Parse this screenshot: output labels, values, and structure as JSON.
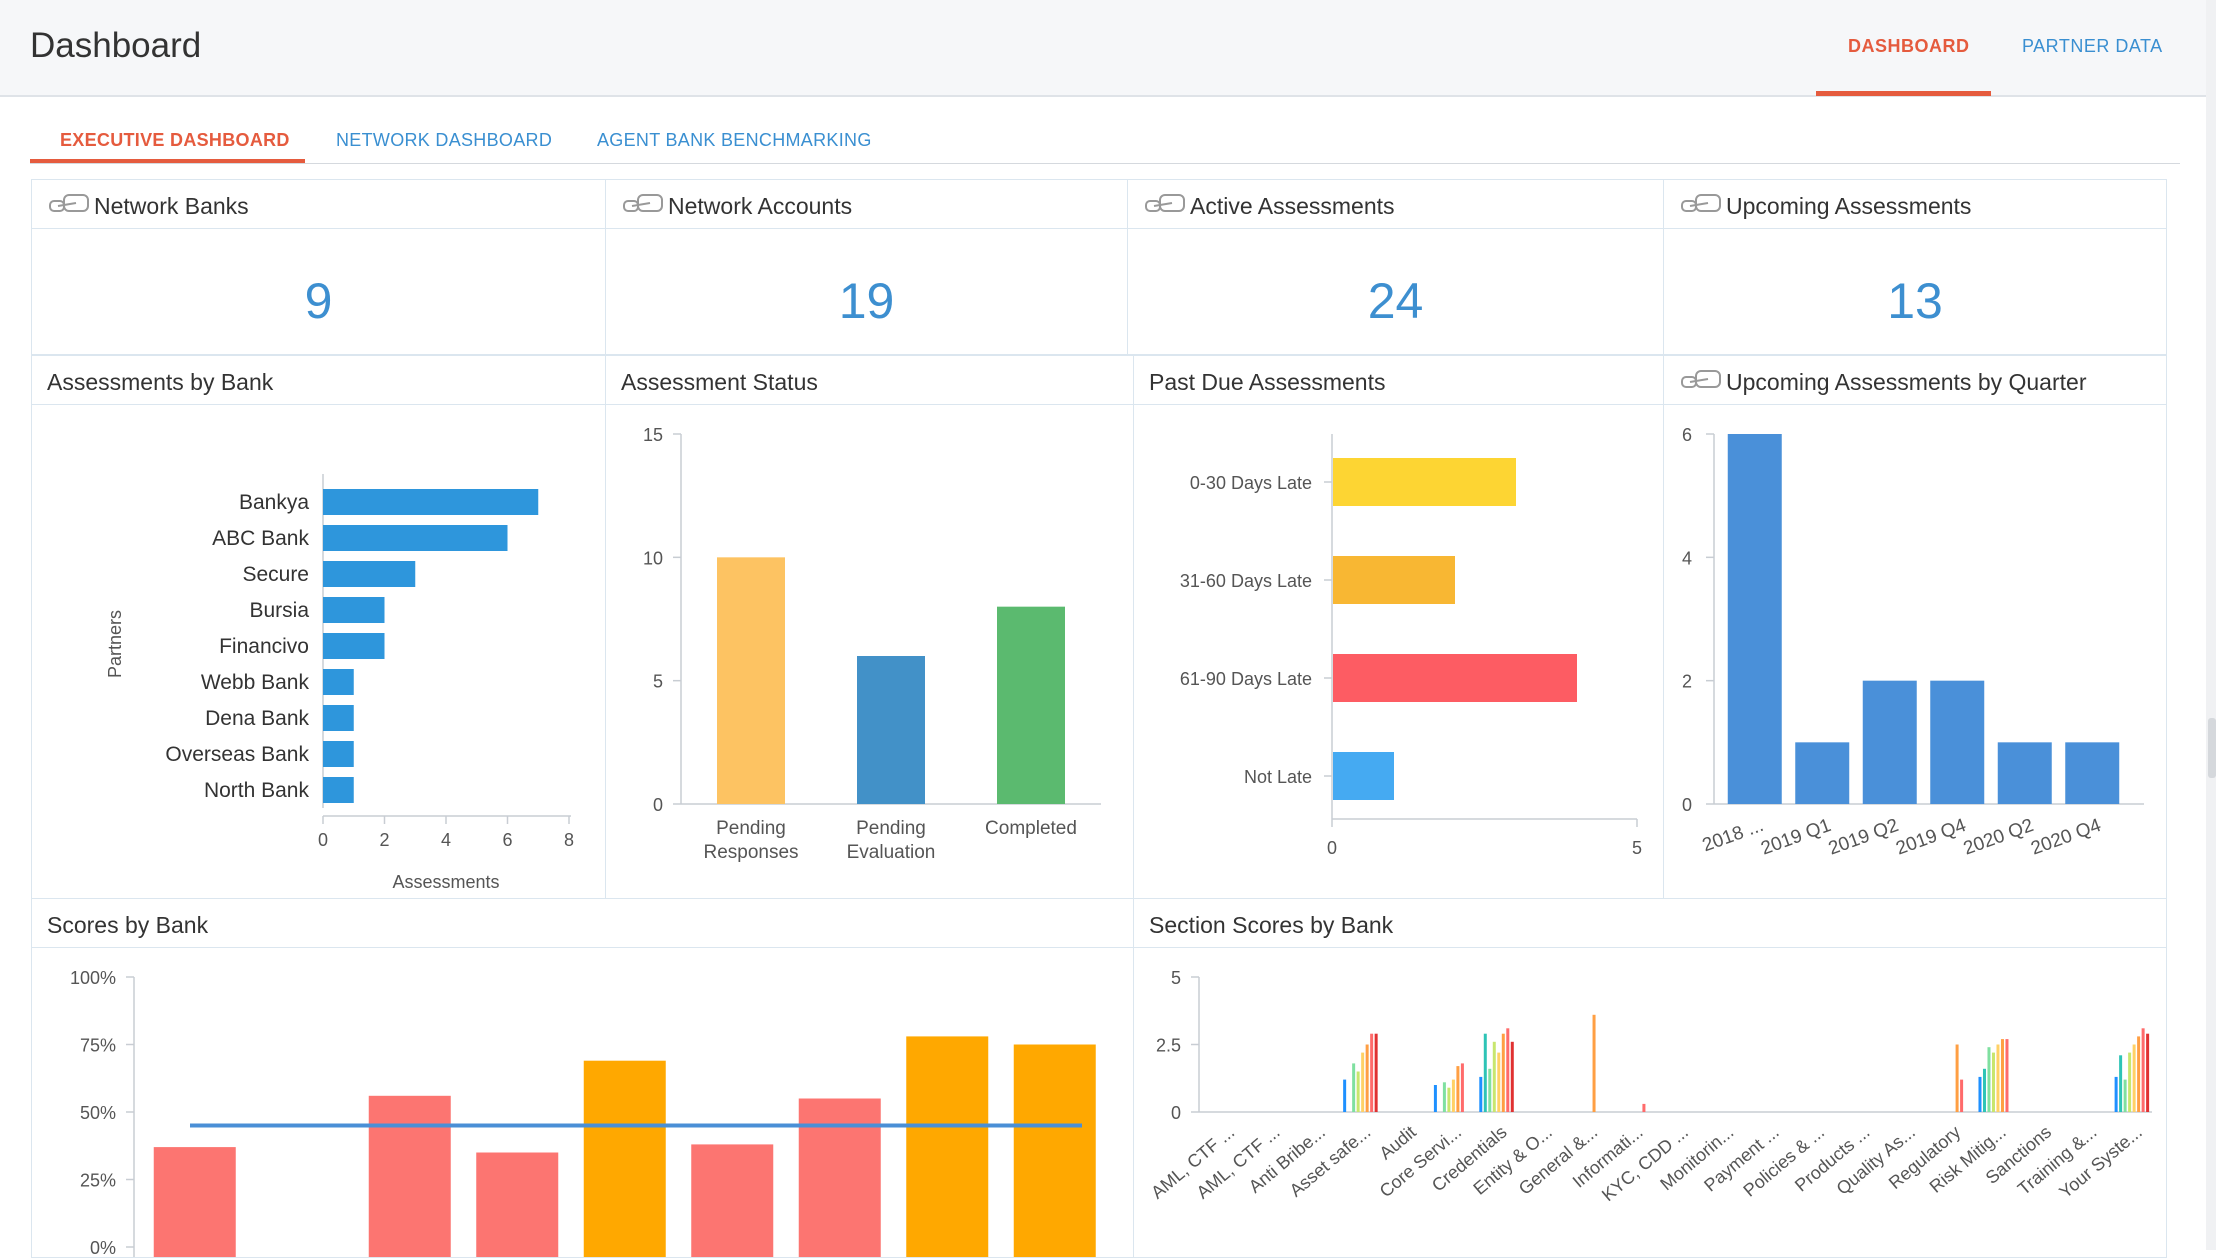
{
  "header": {
    "title": "Dashboard",
    "nav": [
      {
        "label": "DASHBOARD",
        "active": true
      },
      {
        "label": "PARTNER DATA",
        "active": false
      }
    ]
  },
  "subtabs": [
    {
      "label": "EXECUTIVE DASHBOARD",
      "active": true
    },
    {
      "label": "NETWORK DASHBOARD",
      "active": false
    },
    {
      "label": "AGENT BANK BENCHMARKING",
      "active": false
    }
  ],
  "kpis": [
    {
      "title": "Network Banks",
      "value": "9"
    },
    {
      "title": "Network Accounts",
      "value": "19"
    },
    {
      "title": "Active Assessments",
      "value": "24"
    },
    {
      "title": "Upcoming Assessments",
      "value": "13"
    }
  ],
  "panels": {
    "assessments_by_bank": "Assessments by Bank",
    "assessment_status": "Assessment Status",
    "past_due": "Past Due Assessments",
    "upcoming_by_quarter": "Upcoming Assessments by Quarter",
    "scores_by_bank": "Scores by Bank",
    "section_scores": "Section Scores by Bank"
  },
  "colors": {
    "accent": "#e55b3e",
    "link": "#3a8fd1",
    "kpi": "#3d8fd0"
  },
  "chart_data": [
    {
      "id": "assessments_by_bank",
      "type": "bar",
      "orientation": "horizontal",
      "title": "Assessments by Bank",
      "categories": [
        "Bankya",
        "ABC Bank",
        "Secure",
        "Bursia",
        "Financivo",
        "Webb Bank",
        "Dena Bank",
        "Overseas Bank",
        "North Bank"
      ],
      "values": [
        7,
        6,
        3,
        2,
        2,
        1,
        1,
        1,
        1
      ],
      "xlabel": "Assessments",
      "ylabel": "Partners",
      "xlim": [
        0,
        8
      ],
      "xticks": [
        "0",
        "2",
        "4",
        "6",
        "8"
      ],
      "color": "#2e96dc"
    },
    {
      "id": "assessment_status",
      "type": "bar",
      "title": "Assessment Status",
      "categories": [
        [
          "Pending",
          "Responses"
        ],
        [
          "Pending",
          "Evaluation"
        ],
        [
          "Completed"
        ]
      ],
      "values": [
        10,
        6,
        8
      ],
      "ylim": [
        0,
        15
      ],
      "yticks": [
        "0",
        "5",
        "10",
        "15"
      ],
      "colors": [
        "#fdc362",
        "#4291c8",
        "#5bba6f"
      ]
    },
    {
      "id": "past_due",
      "type": "bar",
      "orientation": "horizontal",
      "title": "Past Due Assessments",
      "categories": [
        "0-30 Days Late",
        "31-60 Days Late",
        "61-90 Days Late",
        "Not Late"
      ],
      "values": [
        3,
        2,
        4,
        1
      ],
      "xlim": [
        0,
        5
      ],
      "xticks": [
        "0",
        "5"
      ],
      "colors": [
        "#fdd533",
        "#f8b733",
        "#fd5c63",
        "#45aaf2"
      ]
    },
    {
      "id": "upcoming_by_quarter",
      "type": "bar",
      "title": "Upcoming Assessments by Quarter",
      "categories": [
        "2018 ...",
        "2019 Q1",
        "2019 Q2",
        "2019 Q4",
        "2020 Q2",
        "2020 Q4"
      ],
      "values": [
        6,
        1,
        2,
        2,
        1,
        1
      ],
      "ylim": [
        0,
        6
      ],
      "yticks": [
        "0",
        "2",
        "4",
        "6"
      ],
      "color": "#4a90d9"
    },
    {
      "id": "scores_by_bank",
      "type": "bar",
      "title": "Scores by Bank",
      "values": [
        37,
        0,
        56,
        35,
        69,
        38,
        55,
        78,
        75
      ],
      "colors": [
        "#fc7571",
        "#fc7571",
        "#fc7571",
        "#fc7571",
        "#ffa800",
        "#fc7571",
        "#fc7571",
        "#ffa800",
        "#ffa800"
      ],
      "average": 45,
      "ylim": [
        0,
        100
      ],
      "yticks": [
        "0%",
        "25%",
        "50%",
        "75%",
        "100%"
      ]
    },
    {
      "id": "section_scores",
      "type": "bar",
      "title": "Section Scores by Bank",
      "categories": [
        "AML, CTF ...",
        "AML, CTF ...",
        "Anti Bribe...",
        "Asset safe...",
        "Audit",
        "Core Servi...",
        "Credentials",
        "Entity & O...",
        "General &...",
        "Informati...",
        "KYC, CDD ...",
        "Monitorin...",
        "Payment ...",
        "Policies & ...",
        "Products ...",
        "Quality As...",
        "Regulatory",
        "Risk Mitig...",
        "Sanctions",
        "Training &...",
        "Your Syste..."
      ],
      "series_colors": [
        "#1e90ff",
        "#2ec4b6",
        "#7fe0a0",
        "#c8e66e",
        "#ffd166",
        "#ff9f43",
        "#ff6b6b",
        "#e03131"
      ],
      "groups": [
        [],
        [],
        [],
        [
          1.2,
          0,
          1.8,
          1.5,
          2.2,
          2.5,
          2.9,
          2.9
        ],
        [],
        [
          1,
          0,
          1.1,
          0.9,
          1.2,
          1.7,
          1.8,
          0
        ],
        [
          1.3,
          2.9,
          1.6,
          2.6,
          2.2,
          2.9,
          3.1,
          2.6
        ],
        [],
        [
          0,
          0,
          0,
          0,
          0,
          3.6,
          0,
          0
        ],
        [
          0,
          0,
          0,
          0,
          0,
          0,
          0.3,
          0
        ],
        [],
        [],
        [],
        [],
        [],
        [],
        [
          0,
          0,
          0,
          0,
          0,
          2.5,
          1.2,
          0
        ],
        [
          1.3,
          1.6,
          2.4,
          2.2,
          2.5,
          2.7,
          2.7,
          0
        ],
        [],
        [],
        [
          1.3,
          2.1,
          1.2,
          2.2,
          2.5,
          2.8,
          3.1,
          2.9
        ]
      ],
      "ylim": [
        0,
        5
      ],
      "yticks": [
        "0",
        "2.5",
        "5"
      ]
    }
  ]
}
